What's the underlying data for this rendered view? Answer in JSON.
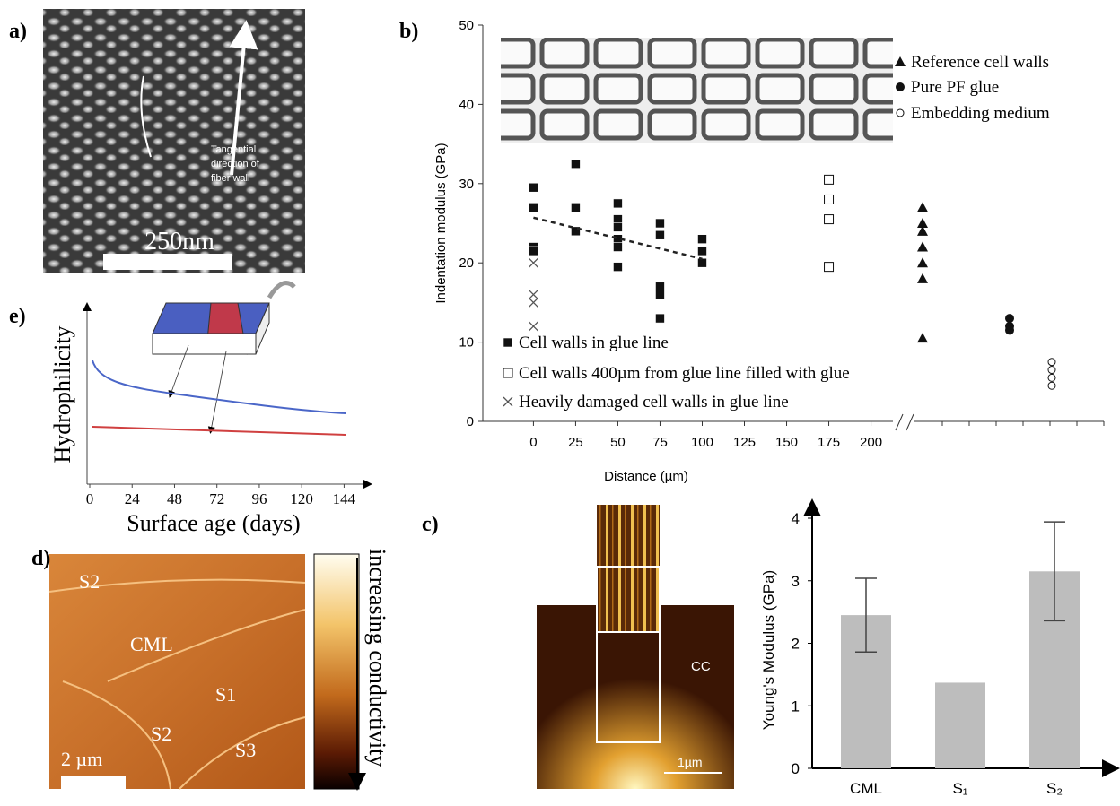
{
  "figure": {
    "panel_labels": [
      "a)",
      "b)",
      "c)",
      "d)",
      "e)"
    ],
    "panel_a": {
      "scale_bar": "250nm",
      "arrow_label": [
        "Tangential",
        "direction of",
        "fiber wall"
      ]
    },
    "panel_c": {
      "image_labels": [
        "CC",
        "1µm"
      ]
    },
    "panel_d": {
      "region_labels": [
        "S2",
        "CML",
        "S1",
        "S2",
        "S3"
      ],
      "scale_bar": "2 µm",
      "colorbar_label": "increasing conductivity"
    }
  },
  "chart_data": [
    {
      "type": "scatter",
      "xlabel": "Distance (µm)",
      "ylabel": "Indentation modulus (GPa)",
      "xlim": [
        -30,
        213
      ],
      "ylim": [
        0,
        50
      ],
      "xticks": [
        0,
        25,
        50,
        75,
        100,
        125,
        150,
        175,
        200
      ],
      "yticks": [
        0,
        10,
        20,
        30,
        40,
        50
      ],
      "series": [
        {
          "name": "Cell walls in glue line",
          "marker": "square",
          "color": "#111111",
          "x": [
            0,
            0,
            0,
            0,
            25,
            25,
            25,
            50,
            50,
            50,
            50,
            50,
            50,
            75,
            75,
            75,
            75,
            75,
            100,
            100,
            100
          ],
          "values": [
            29.5,
            27,
            22,
            21.5,
            32.5,
            27,
            24,
            27.5,
            25.5,
            24.5,
            23,
            22,
            19.5,
            25,
            23.5,
            17,
            16,
            13,
            23,
            21.5,
            20
          ]
        },
        {
          "name": "Cell walls 400µm from glue line filled with glue",
          "marker": "open-square",
          "color": "#111111",
          "x": [
            175,
            175,
            175,
            175
          ],
          "values": [
            30.5,
            28,
            25.5,
            19.5
          ]
        },
        {
          "name": "Heavily damaged cell walls in glue line",
          "marker": "x",
          "color": "#555555",
          "x": [
            0,
            0,
            0,
            0
          ],
          "values": [
            20,
            16,
            15,
            12
          ]
        },
        {
          "name": "Reference cell walls",
          "marker": "triangle",
          "color": "#111111",
          "values": [
            27,
            25,
            24,
            22,
            20,
            18,
            10.5
          ]
        },
        {
          "name": "Pure PF glue",
          "marker": "circle",
          "color": "#111111",
          "values": [
            13,
            12,
            11.5
          ]
        },
        {
          "name": "Embedding medium",
          "marker": "open-circle",
          "color": "#111111",
          "values": [
            7.5,
            6.5,
            5.5,
            4.5
          ]
        }
      ],
      "trendline": {
        "x": [
          0,
          100
        ],
        "values": [
          25.7,
          20.5
        ]
      }
    },
    {
      "type": "line",
      "xlabel": "Surface age (days)",
      "ylabel": "Hydrophilicity",
      "xlim": [
        0,
        157
      ],
      "xticks": [
        0,
        24,
        48,
        72,
        96,
        120,
        144
      ]
    },
    {
      "type": "bar",
      "ylabel": "Young's Modulus (GPa)",
      "categories": [
        "CML",
        "S₁",
        "S₂"
      ],
      "values": [
        2.45,
        1.37,
        3.15
      ],
      "errors": [
        0.59,
        null,
        0.79
      ],
      "color": "#bdbdbd",
      "ylim": [
        0,
        4
      ],
      "yticks": [
        0,
        1,
        2,
        3,
        4
      ]
    }
  ]
}
